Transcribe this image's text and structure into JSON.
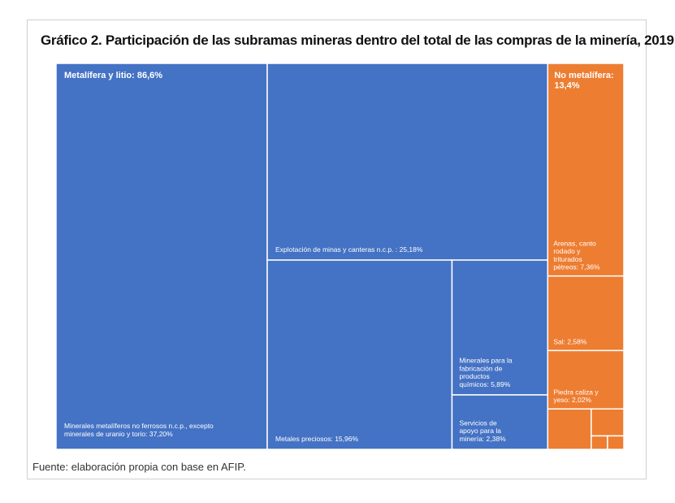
{
  "title": "Gráfico 2. Participación de las subramas mineras dentro del total de las compras de la minería, 2019",
  "source": "Fuente: elaboración propia con base en AFIP.",
  "colors": {
    "metalifera": "#4472c4",
    "no_metalifera": "#ed7d31",
    "border": "#ffffff"
  },
  "chart_data": {
    "type": "treemap",
    "title": "Gráfico 2. Participación de las subramas mineras dentro del total de las compras de la minería, 2019",
    "unit": "%",
    "groups": [
      {
        "name": "Metalífera y litio",
        "label": "Metalífera y litio: 86,6%",
        "value": 86.6,
        "color": "#4472c4",
        "children": [
          {
            "label_lines": [
              "Minerales metalíferos no ferrosos n.c.p., excepto",
              "minerales de uranio y torio: 37,20%"
            ],
            "value": 37.2
          },
          {
            "label_lines": [
              "Explotación de minas y canteras n.c.p. : 25,18%"
            ],
            "value": 25.18
          },
          {
            "label_lines": [
              "Metales preciosos: 15,96%"
            ],
            "value": 15.96
          },
          {
            "label_lines": [
              "Minerales para la",
              "fabricación de",
              "productos",
              "químicos: 5,89%"
            ],
            "value": 5.89
          },
          {
            "label_lines": [
              "Servicios de",
              "apoyo para la",
              "minería: 2,38%"
            ],
            "value": 2.38
          }
        ]
      },
      {
        "name": "No metalífera",
        "label_lines": [
          "No metalífera:",
          "13,4%"
        ],
        "value": 13.4,
        "color": "#ed7d31",
        "children": [
          {
            "label_lines": [
              "Arenas, canto",
              "rodado y",
              "triturados",
              "pétreos: 7,36%"
            ],
            "value": 7.36
          },
          {
            "label_lines": [
              "Sal: 2,58%"
            ],
            "value": 2.58
          },
          {
            "label_lines": [
              "Piedra caliza y",
              "yeso: 2,02%"
            ],
            "value": 2.02
          },
          {
            "label_lines": [],
            "value": 0.8
          },
          {
            "label_lines": [],
            "value": 0.4
          },
          {
            "label_lines": [],
            "value": 0.1
          },
          {
            "label_lines": [],
            "value": 0.1
          }
        ]
      }
    ]
  }
}
